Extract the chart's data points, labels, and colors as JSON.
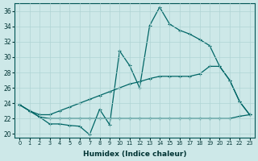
{
  "xlabel": "Humidex (Indice chaleur)",
  "xlim_min": -0.5,
  "xlim_max": 23.5,
  "ylim_min": 19.5,
  "ylim_max": 37.0,
  "yticks": [
    20,
    22,
    24,
    26,
    28,
    30,
    32,
    34,
    36
  ],
  "xticks": [
    0,
    1,
    2,
    3,
    4,
    5,
    6,
    7,
    8,
    9,
    10,
    11,
    12,
    13,
    14,
    15,
    16,
    17,
    18,
    19,
    20,
    21,
    22,
    23
  ],
  "bg_color": "#cde8e8",
  "line_color": "#006666",
  "grid_color": "#b0d4d4",
  "line1_x": [
    0,
    1,
    2,
    3,
    4,
    5,
    6,
    7,
    8,
    9,
    10,
    11,
    12,
    13,
    14,
    15,
    16,
    17,
    18,
    19,
    20,
    21,
    22,
    23
  ],
  "line1_y": [
    23.8,
    23.0,
    22.2,
    21.3,
    21.3,
    21.1,
    21.0,
    19.9,
    23.2,
    21.2,
    30.8,
    28.9,
    26.0,
    34.1,
    36.5,
    34.3,
    33.5,
    33.0,
    32.3,
    31.5,
    28.8,
    27.0,
    24.2,
    22.5
  ],
  "line2_x": [
    0,
    1,
    2,
    3,
    4,
    5,
    6,
    7,
    8,
    9,
    10,
    11,
    12,
    13,
    14,
    15,
    16,
    17,
    18,
    19,
    20,
    21,
    22,
    23
  ],
  "line2_y": [
    23.8,
    23.0,
    22.5,
    22.5,
    23.0,
    23.5,
    24.0,
    24.5,
    25.0,
    25.5,
    26.0,
    26.5,
    26.8,
    27.2,
    27.5,
    27.5,
    27.5,
    27.5,
    27.8,
    28.8,
    28.8,
    27.0,
    24.2,
    22.5
  ],
  "line3_x": [
    0,
    1,
    2,
    3,
    4,
    5,
    6,
    7,
    8,
    9,
    10,
    11,
    12,
    13,
    14,
    15,
    16,
    17,
    18,
    19,
    20,
    21,
    22,
    23
  ],
  "line3_y": [
    23.8,
    23.0,
    22.2,
    22.0,
    22.0,
    22.0,
    22.0,
    22.0,
    22.0,
    22.0,
    22.0,
    22.0,
    22.0,
    22.0,
    22.0,
    22.0,
    22.0,
    22.0,
    22.0,
    22.0,
    22.0,
    22.0,
    22.3,
    22.5
  ]
}
